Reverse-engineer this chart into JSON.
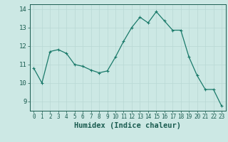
{
  "x": [
    0,
    1,
    2,
    3,
    4,
    5,
    6,
    7,
    8,
    9,
    10,
    11,
    12,
    13,
    14,
    15,
    16,
    17,
    18,
    19,
    20,
    21,
    22,
    23
  ],
  "y": [
    10.8,
    10.0,
    11.7,
    11.8,
    11.6,
    11.0,
    10.9,
    10.7,
    10.55,
    10.65,
    11.4,
    12.25,
    13.0,
    13.55,
    13.25,
    13.85,
    13.35,
    12.85,
    12.85,
    11.4,
    10.4,
    9.65,
    9.65,
    8.75
  ],
  "line_color": "#1a7a6a",
  "marker": "+",
  "marker_size": 3,
  "marker_lw": 0.8,
  "bg_color": "#cce8e4",
  "grid_color": "#b8d8d4",
  "xlabel": "Humidex (Indice chaleur)",
  "ylabel_ticks": [
    9,
    10,
    11,
    12,
    13,
    14
  ],
  "xlim": [
    -0.5,
    23.5
  ],
  "ylim": [
    8.5,
    14.25
  ],
  "xtick_labels": [
    "0",
    "1",
    "2",
    "3",
    "4",
    "5",
    "6",
    "7",
    "8",
    "9",
    "10",
    "11",
    "12",
    "13",
    "14",
    "15",
    "16",
    "17",
    "18",
    "19",
    "20",
    "21",
    "22",
    "23"
  ],
  "xlabel_color": "#1a5c50",
  "tick_color": "#1a5c50",
  "axis_color": "#1a5c50",
  "xlabel_fontsize": 7.5,
  "ytick_fontsize": 6.5,
  "xtick_fontsize": 5.5,
  "line_width": 0.9
}
